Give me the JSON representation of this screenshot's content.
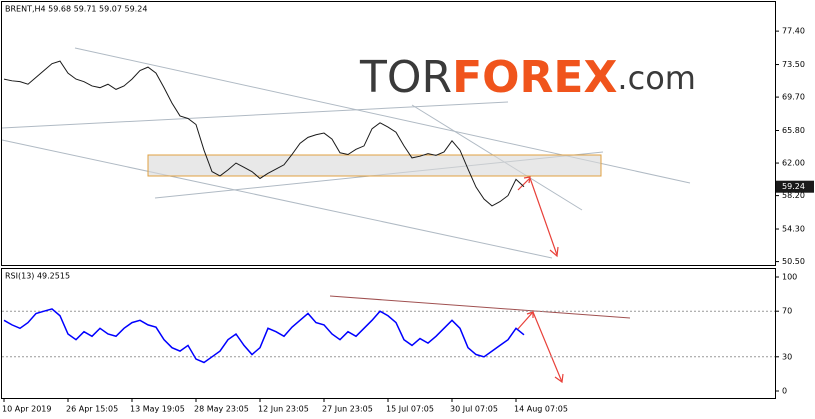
{
  "title": "BRENT,H4 59.68 59.71 59.07 59.24",
  "price_label": "59.24",
  "watermark": {
    "part1": "TOR",
    "part2": "FOREX",
    "part3": ".com"
  },
  "chart_data": [
    {
      "type": "line",
      "categories": [
        "10 Apr 2019",
        null,
        null,
        null,
        null,
        null,
        null,
        null,
        "26 Apr 15:05",
        null,
        null,
        null,
        null,
        null,
        null,
        null,
        "13 May 19:05",
        null,
        null,
        null,
        null,
        null,
        null,
        null,
        "28 May 23:05",
        null,
        null,
        null,
        null,
        null,
        null,
        null,
        "12 Jun 23:05",
        null,
        null,
        null,
        null,
        null,
        null,
        null,
        "27 Jun 23:05",
        null,
        null,
        null,
        null,
        null,
        null,
        null,
        "15 Jul 07:05",
        null,
        null,
        null,
        null,
        null,
        null,
        null,
        "30 Jul 07:05",
        null,
        null,
        null,
        null,
        null,
        null,
        null,
        "14 Aug 07:05",
        null
      ],
      "values": [
        71.8,
        71.6,
        71.5,
        71.2,
        72.0,
        72.8,
        73.6,
        73.9,
        72.5,
        71.8,
        71.5,
        71.0,
        70.8,
        71.2,
        70.6,
        71.0,
        71.8,
        72.8,
        73.2,
        72.5,
        70.8,
        69.0,
        67.5,
        67.2,
        66.5,
        63.5,
        61.0,
        60.5,
        61.2,
        62.0,
        61.5,
        61.0,
        60.2,
        60.8,
        61.3,
        61.8,
        63.0,
        64.3,
        65.0,
        65.3,
        65.5,
        64.8,
        63.2,
        63.0,
        63.6,
        64.0,
        66.0,
        66.7,
        66.2,
        65.6,
        64.0,
        62.6,
        62.8,
        63.1,
        62.9,
        63.3,
        64.6,
        63.5,
        61.3,
        59.2,
        57.8,
        57.0,
        57.5,
        58.2,
        60.1,
        59.24
      ],
      "color": "#1a1a1a",
      "ylim": [
        50.1,
        80.8
      ],
      "yticks": [
        {
          "value": 77.4,
          "label": "77.40"
        },
        {
          "value": 73.5,
          "label": "73.50"
        },
        {
          "value": 69.7,
          "label": "69.70"
        },
        {
          "value": 65.8,
          "label": "65.80"
        },
        {
          "value": 62.0,
          "label": "62.00"
        },
        {
          "value": 58.2,
          "label": "58.20"
        },
        {
          "value": 54.3,
          "label": "54.30"
        },
        {
          "value": 50.5,
          "label": "50.50"
        }
      ]
    },
    {
      "type": "line",
      "title": "RSI(13) 49.2515",
      "values": [
        62,
        58,
        55,
        60,
        68,
        70,
        72,
        66,
        50,
        45,
        52,
        48,
        55,
        50,
        48,
        55,
        60,
        62,
        58,
        56,
        45,
        38,
        35,
        40,
        28,
        25,
        30,
        35,
        45,
        50,
        40,
        32,
        38,
        55,
        52,
        48,
        56,
        62,
        68,
        60,
        58,
        50,
        45,
        52,
        48,
        55,
        62,
        70,
        66,
        60,
        45,
        40,
        46,
        42,
        48,
        55,
        62,
        55,
        38,
        32,
        30,
        35,
        40,
        45,
        55,
        49.2515
      ],
      "color": "#0000ff",
      "ylim": [
        0,
        100
      ],
      "yticks": [
        100,
        70,
        30,
        0
      ]
    }
  ]
}
